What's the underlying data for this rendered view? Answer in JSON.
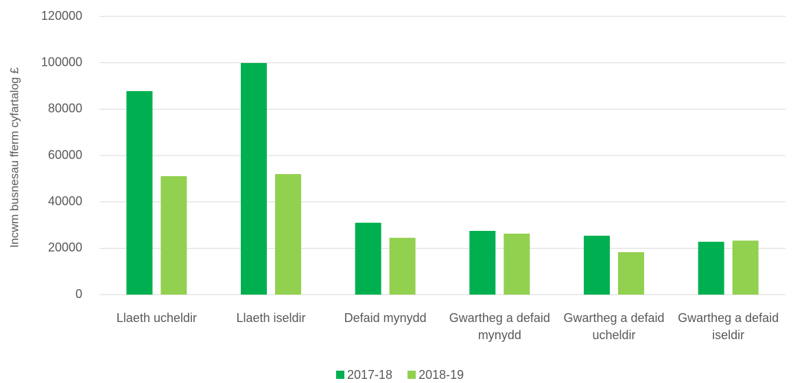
{
  "chart_data": {
    "type": "bar",
    "y_label": "Incwm busnesau fferm cyfartalog £",
    "categories": [
      "Llaeth ucheldir",
      "Llaeth iseldir",
      "Defaid mynydd",
      "Gwartheg a defaid mynydd",
      "Gwartheg a defaid ucheldir",
      "Gwartheg a defaid iseldir"
    ],
    "series": [
      {
        "name": "2017-18",
        "color": "#00b050",
        "values": [
          87800,
          99900,
          31000,
          27500,
          25400,
          22800
        ]
      },
      {
        "name": "2018-19",
        "color": "#92d050",
        "values": [
          51100,
          52000,
          24500,
          26300,
          18300,
          23300
        ]
      }
    ],
    "ylim": [
      0,
      120000
    ],
    "yticks": [
      0,
      20000,
      40000,
      60000,
      80000,
      100000,
      120000
    ],
    "grid": true,
    "legend": "bottom"
  }
}
